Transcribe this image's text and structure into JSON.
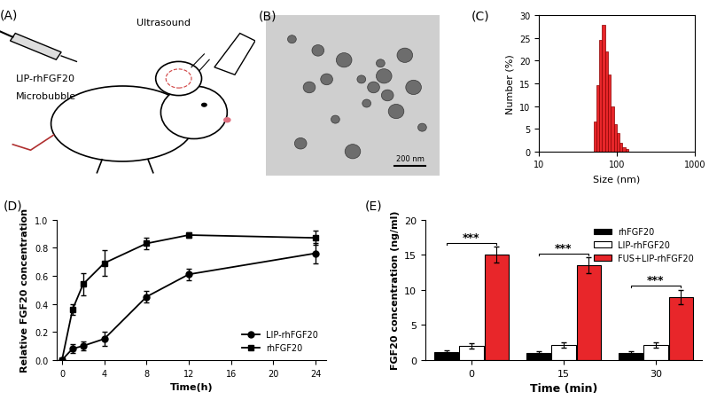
{
  "panels": [
    {
      "title": "(A)",
      "labels": [
        "LIP-rhFGF20",
        "Microbubble",
        "Ultrasound"
      ]
    },
    {
      "title": "(B)",
      "scale_bar": "200 nm"
    }
  ],
  "chart_data": [
    {
      "type": "histogram",
      "title": "(C)",
      "xlabel": "Size (nm)",
      "ylabel": "Number (%)",
      "bins": [
        50,
        54.5,
        59.4,
        64.8,
        70.6,
        77,
        83.9,
        91.4,
        99.6,
        108.6,
        118.4,
        129,
        140.6
      ],
      "counts": [
        6.5,
        14.5,
        24.5,
        27.8,
        22,
        17,
        10,
        6,
        4,
        2,
        1,
        0.5
      ],
      "color": "#e8262a",
      "log": "x",
      "xlim": [
        10,
        1000
      ],
      "xticks": [
        10,
        100,
        1000
      ],
      "ylim": [
        0,
        30
      ],
      "yticks": [
        0,
        5,
        10,
        15,
        20,
        25,
        30
      ]
    },
    {
      "type": "line",
      "title": "(D)",
      "xlabel": "Time(h)",
      "ylabel": "Relative FGF20 concentration",
      "x": [
        0,
        1,
        2,
        4,
        8,
        12,
        24
      ],
      "series": [
        {
          "name": "LIP-rhFGF20",
          "color": "#000000",
          "marker": "circle",
          "values": [
            0,
            0.08,
            0.1,
            0.15,
            0.45,
            0.61,
            0.76
          ],
          "error": [
            0.01,
            0.03,
            0.03,
            0.05,
            0.04,
            0.04,
            0.07
          ]
        },
        {
          "name": "rhFGF20",
          "color": "#000000",
          "marker": "square",
          "values": [
            0,
            0.36,
            0.54,
            0.69,
            0.83,
            0.89,
            0.87
          ],
          "error": [
            0.01,
            0.04,
            0.08,
            0.09,
            0.04,
            0.02,
            0.05
          ]
        }
      ],
      "xlim": [
        -0.5,
        25
      ],
      "xticks": [
        0,
        4,
        8,
        12,
        16,
        20,
        24
      ],
      "ylim": [
        0,
        1.0
      ],
      "yticks": [
        {
          "value": 0,
          "label": "0.0"
        },
        {
          "value": 0.2,
          "label": "0.2"
        },
        {
          "value": 0.4,
          "label": "0.4"
        },
        {
          "value": 0.6,
          "label": "0.6"
        },
        {
          "value": 0.8,
          "label": "0.8"
        },
        {
          "value": 1.0,
          "label": "1.0"
        }
      ],
      "legend": "lower right"
    },
    {
      "type": "bar",
      "title": "(E)",
      "xlabel": "Time (min)",
      "ylabel": "FGF20 concentration (ng/ml)",
      "categories": [
        "0",
        "15",
        "30"
      ],
      "series": [
        {
          "name": "rhFGF20",
          "color": "#000000",
          "values": [
            1.1,
            1.0,
            1.0
          ],
          "error": [
            0.3,
            0.3,
            0.3
          ]
        },
        {
          "name": "LIP-rhFGF20",
          "color": "#ffffff",
          "values": [
            2.0,
            2.1,
            2.1
          ],
          "error": [
            0.4,
            0.4,
            0.4
          ]
        },
        {
          "name": "FUS+LIP-rhFGF20",
          "color": "#e8262a",
          "values": [
            15.0,
            13.5,
            9.0
          ],
          "error": [
            1.1,
            1.1,
            1.0
          ]
        }
      ],
      "annotations": [
        "***",
        "***",
        "***"
      ],
      "ylim": [
        0,
        20
      ],
      "yticks": [
        0,
        5,
        10,
        15,
        20
      ],
      "legend": "upper right"
    }
  ]
}
